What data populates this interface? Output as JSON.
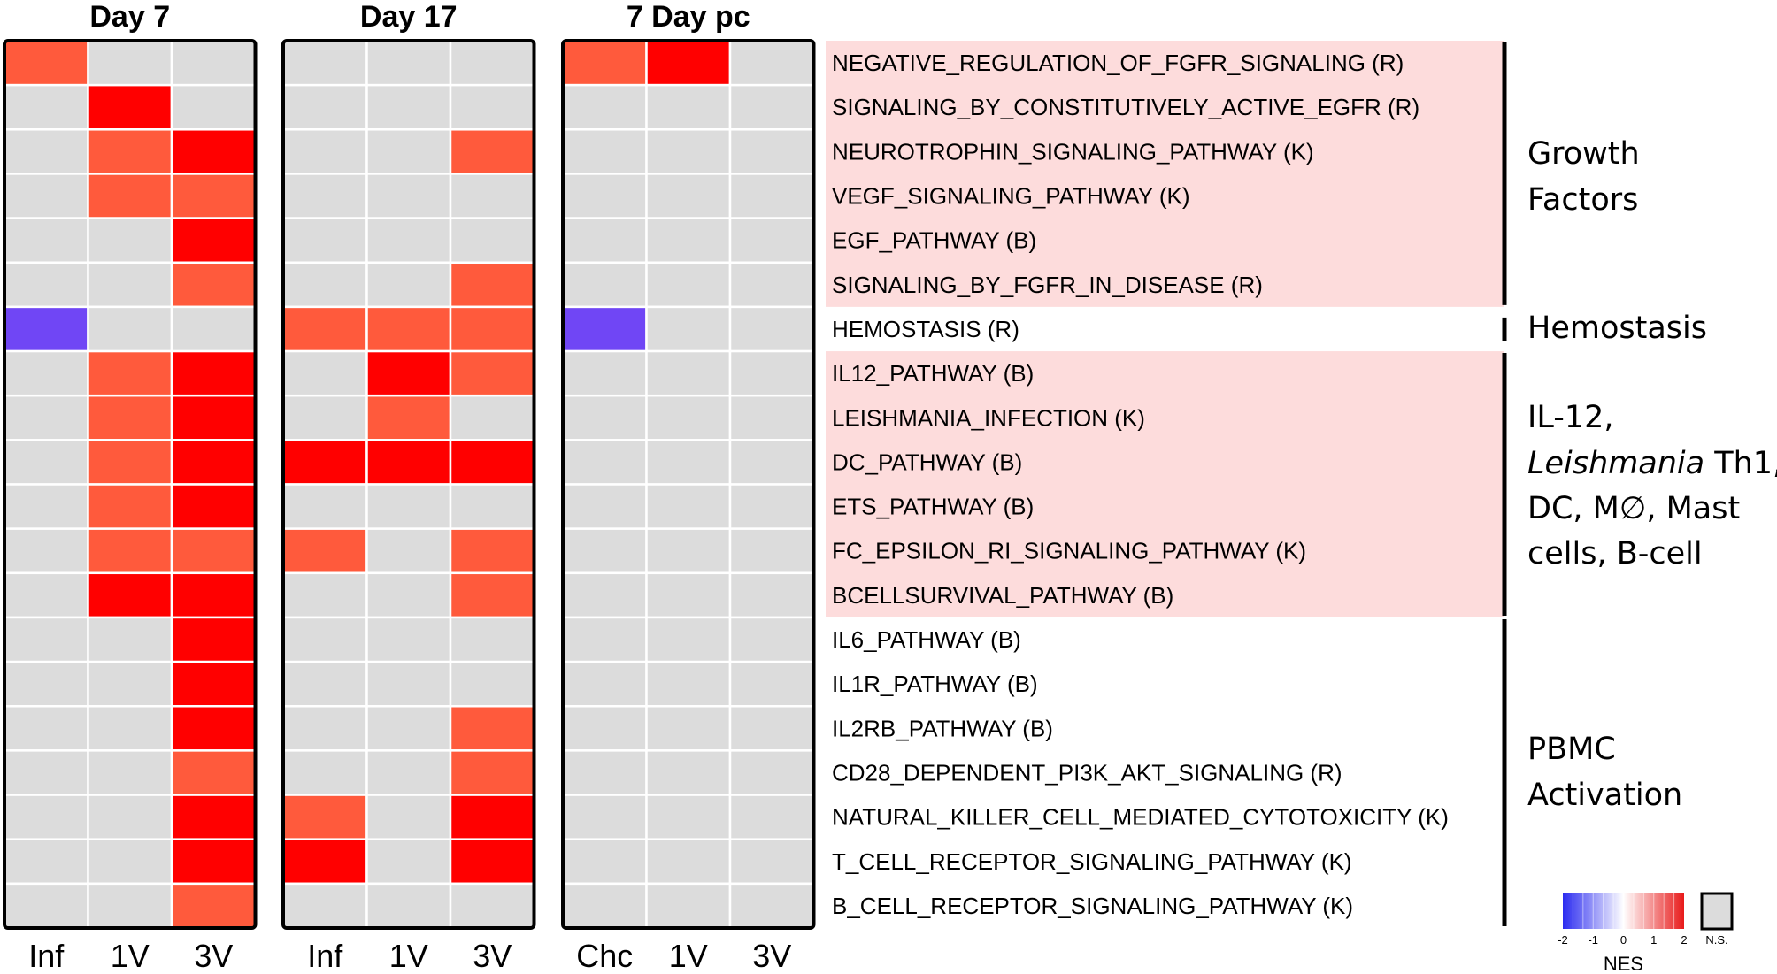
{
  "chart_data": {
    "type": "heatmap",
    "value_legend": {
      "0": "not significant (N.S.)",
      "1": "NES moderately positive",
      "2": "NES strongly positive",
      "-2": "NES strongly negative"
    },
    "panels": [
      {
        "title": "Day 7",
        "columns": [
          "Inf",
          "1V",
          "3V"
        ],
        "values": [
          [
            1,
            0,
            0
          ],
          [
            0,
            2,
            0
          ],
          [
            0,
            1,
            2
          ],
          [
            0,
            1,
            1
          ],
          [
            0,
            0,
            2
          ],
          [
            0,
            0,
            1
          ],
          [
            -2,
            0,
            0
          ],
          [
            0,
            1,
            2
          ],
          [
            0,
            1,
            2
          ],
          [
            0,
            1,
            2
          ],
          [
            0,
            1,
            2
          ],
          [
            0,
            1,
            1
          ],
          [
            0,
            2,
            2
          ],
          [
            0,
            0,
            2
          ],
          [
            0,
            0,
            2
          ],
          [
            0,
            0,
            2
          ],
          [
            0,
            0,
            1
          ],
          [
            0,
            0,
            2
          ],
          [
            0,
            0,
            2
          ],
          [
            0,
            0,
            1
          ]
        ]
      },
      {
        "title": "Day 17",
        "columns": [
          "Inf",
          "1V",
          "3V"
        ],
        "values": [
          [
            0,
            0,
            0
          ],
          [
            0,
            0,
            0
          ],
          [
            0,
            0,
            1
          ],
          [
            0,
            0,
            0
          ],
          [
            0,
            0,
            0
          ],
          [
            0,
            0,
            1
          ],
          [
            1,
            1,
            1
          ],
          [
            0,
            2,
            1
          ],
          [
            0,
            1,
            0
          ],
          [
            2,
            2,
            2
          ],
          [
            0,
            0,
            0
          ],
          [
            1,
            0,
            1
          ],
          [
            0,
            0,
            1
          ],
          [
            0,
            0,
            0
          ],
          [
            0,
            0,
            0
          ],
          [
            0,
            0,
            1
          ],
          [
            0,
            0,
            1
          ],
          [
            1,
            0,
            2
          ],
          [
            2,
            0,
            2
          ],
          [
            0,
            0,
            0
          ]
        ]
      },
      {
        "title": "7 Day pc",
        "columns": [
          "Chc",
          "1V",
          "3V"
        ],
        "values": [
          [
            1,
            2,
            0
          ],
          [
            0,
            0,
            0
          ],
          [
            0,
            0,
            0
          ],
          [
            0,
            0,
            0
          ],
          [
            0,
            0,
            0
          ],
          [
            0,
            0,
            0
          ],
          [
            -2,
            0,
            0
          ],
          [
            0,
            0,
            0
          ],
          [
            0,
            0,
            0
          ],
          [
            0,
            0,
            0
          ],
          [
            0,
            0,
            0
          ],
          [
            0,
            0,
            0
          ],
          [
            0,
            0,
            0
          ],
          [
            0,
            0,
            0
          ],
          [
            0,
            0,
            0
          ],
          [
            0,
            0,
            0
          ],
          [
            0,
            0,
            0
          ],
          [
            0,
            0,
            0
          ],
          [
            0,
            0,
            0
          ],
          [
            0,
            0,
            0
          ]
        ]
      }
    ],
    "pathways": [
      "NEGATIVE_REGULATION_OF_FGFR_SIGNALING (R)",
      "SIGNALING_BY_CONSTITUTIVELY_ACTIVE_EGFR (R)",
      "NEUROTROPHIN_SIGNALING_PATHWAY (K)",
      "VEGF_SIGNALING_PATHWAY (K)",
      "EGF_PATHWAY (B)",
      "SIGNALING_BY_FGFR_IN_DISEASE (R)",
      "HEMOSTASIS (R)",
      "IL12_PATHWAY (B)",
      "LEISHMANIA_INFECTION (K)",
      "DC_PATHWAY (B)",
      "ETS_PATHWAY (B)",
      "FC_EPSILON_RI_SIGNALING_PATHWAY (K)",
      "BCELLSURVIVAL_PATHWAY (B)",
      "IL6_PATHWAY (B)",
      "IL1R_PATHWAY (B)",
      "IL2RB_PATHWAY (B)",
      "CD28_DEPENDENT_PI3K_AKT_SIGNALING (R)",
      "NATURAL_KILLER_CELL_MEDIATED_CYTOTOXICITY (K)",
      "T_CELL_RECEPTOR_SIGNALING_PATHWAY (K)",
      "B_CELL_RECEPTOR_SIGNALING_PATHWAY (K)"
    ],
    "groups": [
      {
        "lines": [
          "Growth",
          "Factors"
        ],
        "start": 0,
        "end": 5,
        "shaded": true
      },
      {
        "lines": [
          "Hemostasis"
        ],
        "start": 6,
        "end": 6,
        "shaded": false
      },
      {
        "lines": [
          "IL-12,",
          "Leishmania Th1,",
          "DC, M∅, Mast",
          "cells, B-cell"
        ],
        "start": 7,
        "end": 12,
        "shaded": true
      },
      {
        "lines": [
          "PBMC",
          "Activation"
        ],
        "start": 13,
        "end": 19,
        "shaded": false
      }
    ],
    "legend": {
      "title": "NES",
      "ticks": [
        "-2",
        "-1",
        "0",
        "1",
        "2"
      ],
      "range": [
        -2,
        2
      ],
      "ns_label": "N.S."
    }
  },
  "colors": {
    "ns_gray": "#dcdcdc",
    "moderate_red": "#ff5a3c",
    "strong_red": "#ff0000",
    "blue": "#7046f5",
    "shade_pink": "#fddcdc",
    "grid_line": "#ffffff",
    "frame": "#000000"
  }
}
